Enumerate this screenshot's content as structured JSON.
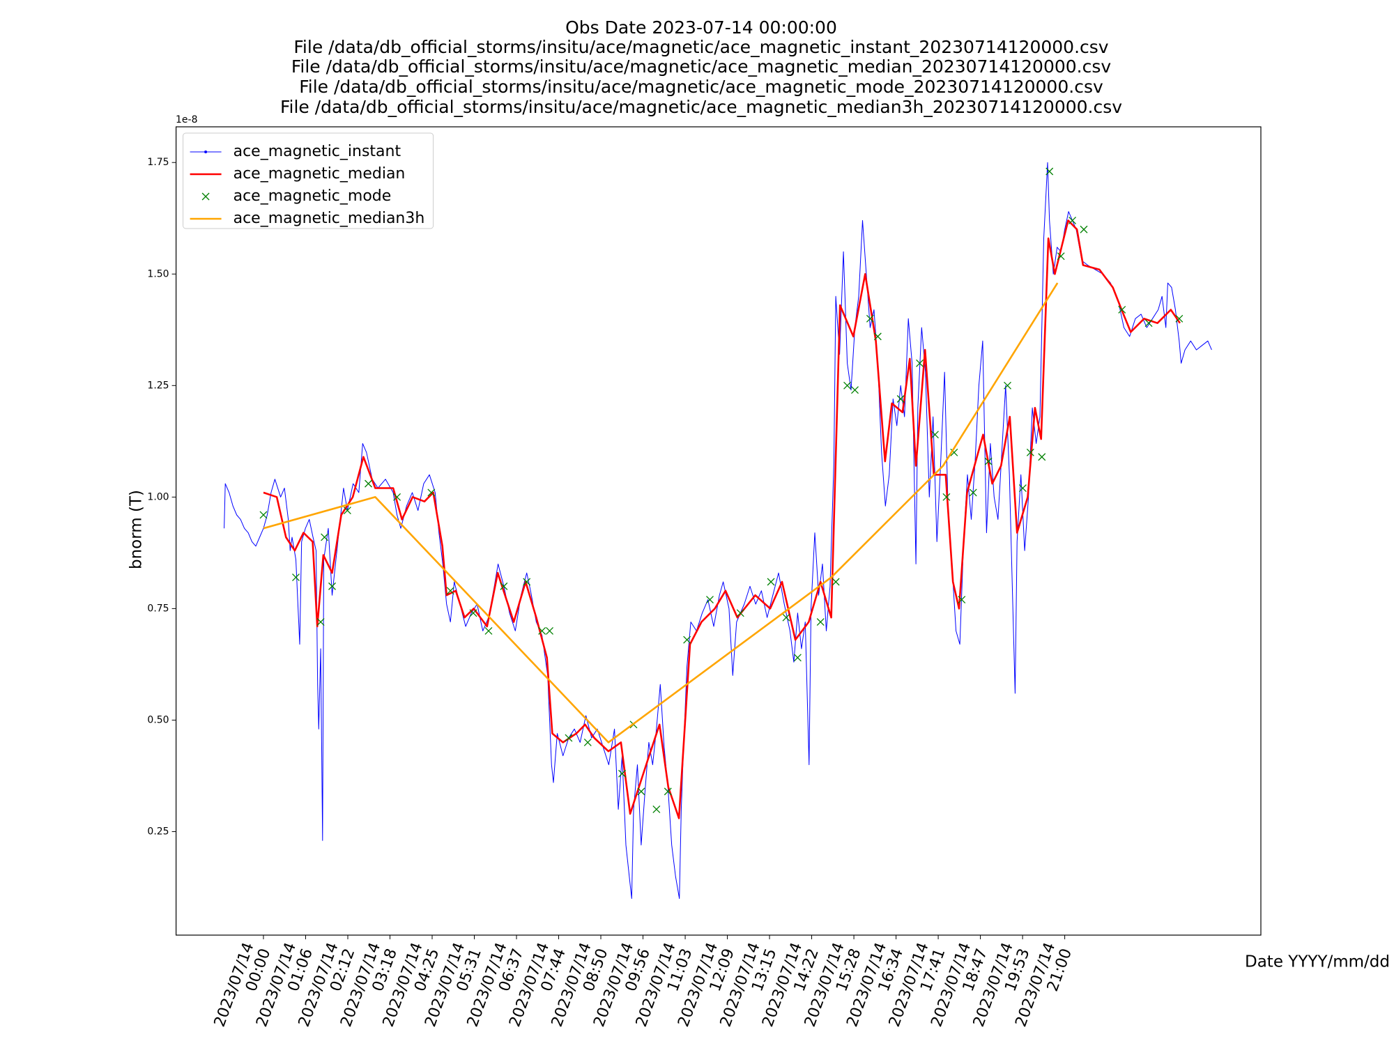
{
  "chart_data": {
    "type": "line",
    "title": "Obs Date 2023-07-14 00:00:00",
    "subtitles": [
      "File /data/db_official_storms/insitu/ace/magnetic/ace_magnetic_instant_20230714120000.csv",
      "File /data/db_official_storms/insitu/ace/magnetic/ace_magnetic_median_20230714120000.csv",
      "File /data/db_official_storms/insitu/ace/magnetic/ace_magnetic_mode_20230714120000.csv",
      "File /data/db_official_storms/insitu/ace/magnetic/ace_magnetic_median3h_20230714120000.csv"
    ],
    "y_label": "bnorm (T)",
    "x_label": "Date YYYY/mm/dd",
    "y_offset_label": "1e-8",
    "legend": "upper left",
    "grid": false,
    "xlim": [
      -2.29,
      26.14
    ],
    "ylim": [
      0.018,
      1.83
    ],
    "yticks": [
      0.25,
      {
        "value": 0.5,
        "label": "0.50"
      },
      0.75,
      {
        "value": 1.0,
        "label": "1.00"
      },
      1.25,
      {
        "value": 1.5,
        "label": "1.50"
      },
      1.75
    ],
    "xticks": [
      {
        "value": 0,
        "label": "2023/07/14\n00:00"
      },
      {
        "value": 1.105,
        "label": "2023/07/14\n01:06"
      },
      {
        "value": 2.211,
        "label": "2023/07/14\n02:12"
      },
      {
        "value": 3.316,
        "label": "2023/07/14\n03:18"
      },
      {
        "value": 4.421,
        "label": "2023/07/14\n04:25"
      },
      {
        "value": 5.526,
        "label": "2023/07/14\n05:31"
      },
      {
        "value": 6.632,
        "label": "2023/07/14\n06:37"
      },
      {
        "value": 7.737,
        "label": "2023/07/14\n07:44"
      },
      {
        "value": 8.842,
        "label": "2023/07/14\n08:50"
      },
      {
        "value": 9.947,
        "label": "2023/07/14\n09:56"
      },
      {
        "value": 11.053,
        "label": "2023/07/14\n11:03"
      },
      {
        "value": 12.158,
        "label": "2023/07/14\n12:09"
      },
      {
        "value": 13.263,
        "label": "2023/07/14\n13:15"
      },
      {
        "value": 14.368,
        "label": "2023/07/14\n14:22"
      },
      {
        "value": 15.474,
        "label": "2023/07/14\n15:28"
      },
      {
        "value": 16.579,
        "label": "2023/07/14\n16:34"
      },
      {
        "value": 17.684,
        "label": "2023/07/14\n17:41"
      },
      {
        "value": 18.789,
        "label": "2023/07/14\n18:47"
      },
      {
        "value": 19.895,
        "label": "2023/07/14\n19:53"
      },
      {
        "value": 21,
        "label": "2023/07/14\n21:00"
      }
    ],
    "series": [
      {
        "name": "ace_magnetic_instant",
        "color": "#0000ff",
        "style": "line-markers",
        "linewidth": 1,
        "x": [
          -1.03,
          -1.0,
          -0.9,
          -0.8,
          -0.7,
          -0.6,
          -0.5,
          -0.4,
          -0.3,
          -0.2,
          -0.1,
          0.0,
          0.1,
          0.2,
          0.3,
          0.45,
          0.55,
          0.65,
          0.7,
          0.75,
          0.85,
          0.95,
          1.0,
          1.1,
          1.2,
          1.3,
          1.38,
          1.42,
          1.45,
          1.5,
          1.55,
          1.58,
          1.7,
          1.8,
          1.9,
          2.0,
          2.1,
          2.2,
          2.35,
          2.5,
          2.6,
          2.7,
          2.85,
          3.0,
          3.2,
          3.4,
          3.5,
          3.6,
          3.75,
          3.9,
          4.05,
          4.2,
          4.35,
          4.5,
          4.6,
          4.7,
          4.8,
          4.9,
          5.0,
          5.15,
          5.3,
          5.45,
          5.6,
          5.75,
          5.9,
          6.05,
          6.15,
          6.3,
          6.45,
          6.6,
          6.75,
          6.9,
          7.0,
          7.15,
          7.3,
          7.45,
          7.55,
          7.6,
          7.7,
          7.85,
          8.0,
          8.15,
          8.3,
          8.45,
          8.6,
          8.75,
          8.9,
          9.05,
          9.2,
          9.3,
          9.4,
          9.5,
          9.6,
          9.65,
          9.7,
          9.8,
          9.9,
          10.0,
          10.1,
          10.2,
          10.3,
          10.4,
          10.5,
          10.6,
          10.7,
          10.8,
          10.9,
          10.95,
          11.0,
          11.1,
          11.2,
          11.35,
          11.5,
          11.65,
          11.8,
          11.95,
          12.05,
          12.2,
          12.3,
          12.4,
          12.6,
          12.75,
          12.9,
          13.05,
          13.2,
          13.35,
          13.5,
          13.65,
          13.8,
          13.9,
          14.0,
          14.1,
          14.2,
          14.3,
          14.35,
          14.45,
          14.55,
          14.65,
          14.75,
          14.85,
          14.95,
          15.0,
          15.1,
          15.2,
          15.3,
          15.4,
          15.5,
          15.6,
          15.7,
          15.8,
          15.9,
          16.0,
          16.1,
          16.2,
          16.3,
          16.4,
          16.5,
          16.6,
          16.7,
          16.8,
          16.9,
          17.0,
          17.1,
          17.15,
          17.25,
          17.35,
          17.45,
          17.55,
          17.65,
          17.75,
          17.85,
          17.95,
          18.05,
          18.15,
          18.25,
          18.35,
          18.45,
          18.55,
          18.65,
          18.75,
          18.85,
          18.95,
          19.05,
          19.15,
          19.25,
          19.35,
          19.45,
          19.55,
          19.65,
          19.7,
          19.75,
          19.85,
          19.95,
          20.05,
          20.15,
          20.25,
          20.35,
          20.45,
          20.55,
          20.6,
          20.7,
          20.8,
          20.9,
          21.0,
          21.1,
          21.2,
          21.3,
          21.45,
          21.6,
          21.8,
          22.0,
          22.2,
          22.4,
          22.55,
          22.7,
          22.85,
          23.0,
          23.15,
          23.3,
          23.45,
          23.55,
          23.65,
          23.7,
          23.8,
          23.9,
          24.0,
          24.05,
          24.15,
          24.3,
          24.45,
          24.6,
          24.75,
          24.85
        ],
        "values": [
          0.93,
          1.03,
          1.01,
          0.98,
          0.96,
          0.95,
          0.93,
          0.92,
          0.9,
          0.89,
          0.91,
          0.93,
          0.96,
          1.01,
          1.04,
          1.0,
          1.02,
          0.95,
          0.88,
          0.91,
          0.86,
          0.67,
          0.9,
          0.93,
          0.95,
          0.91,
          0.88,
          0.58,
          0.48,
          0.66,
          0.23,
          0.86,
          0.93,
          0.78,
          0.86,
          0.94,
          1.02,
          0.97,
          1.03,
          1.01,
          1.12,
          1.1,
          1.04,
          1.02,
          1.04,
          1.01,
          0.96,
          0.93,
          0.98,
          1.01,
          0.97,
          1.03,
          1.05,
          1.01,
          0.92,
          0.85,
          0.76,
          0.72,
          0.81,
          0.76,
          0.71,
          0.74,
          0.76,
          0.7,
          0.73,
          0.8,
          0.85,
          0.8,
          0.74,
          0.7,
          0.78,
          0.83,
          0.79,
          0.72,
          0.69,
          0.6,
          0.4,
          0.36,
          0.47,
          0.42,
          0.46,
          0.48,
          0.45,
          0.51,
          0.46,
          0.48,
          0.44,
          0.4,
          0.48,
          0.3,
          0.42,
          0.22,
          0.14,
          0.1,
          0.3,
          0.4,
          0.22,
          0.34,
          0.45,
          0.4,
          0.48,
          0.58,
          0.44,
          0.35,
          0.22,
          0.15,
          0.1,
          0.3,
          0.42,
          0.62,
          0.72,
          0.7,
          0.74,
          0.77,
          0.71,
          0.78,
          0.81,
          0.75,
          0.6,
          0.72,
          0.76,
          0.8,
          0.76,
          0.79,
          0.73,
          0.78,
          0.83,
          0.76,
          0.7,
          0.63,
          0.74,
          0.66,
          0.72,
          0.4,
          0.75,
          0.92,
          0.78,
          0.85,
          0.7,
          0.8,
          1.08,
          1.45,
          1.32,
          1.55,
          1.3,
          1.24,
          1.38,
          1.45,
          1.62,
          1.5,
          1.38,
          1.42,
          1.3,
          1.1,
          0.98,
          1.05,
          1.22,
          1.16,
          1.25,
          1.18,
          1.4,
          1.3,
          0.85,
          1.2,
          1.38,
          1.28,
          1.0,
          1.18,
          0.9,
          1.08,
          1.28,
          0.95,
          0.84,
          0.7,
          0.67,
          0.9,
          1.05,
          0.95,
          1.08,
          1.25,
          1.35,
          0.92,
          1.12,
          1.0,
          0.95,
          1.1,
          1.25,
          1.05,
          0.72,
          0.56,
          0.9,
          1.05,
          0.88,
          1.0,
          1.2,
          1.12,
          1.18,
          1.58,
          1.75,
          1.62,
          1.5,
          1.56,
          1.55,
          1.6,
          1.64,
          1.62,
          1.6,
          1.53,
          1.52,
          1.51,
          1.5,
          1.48,
          1.44,
          1.38,
          1.36,
          1.4,
          1.41,
          1.38,
          1.4,
          1.42,
          1.45,
          1.38,
          1.48,
          1.47,
          1.42,
          1.35,
          1.3,
          1.33,
          1.35,
          1.33,
          1.34,
          1.35,
          1.33
        ]
      },
      {
        "name": "ace_magnetic_median",
        "color": "#ff0000",
        "style": "line",
        "linewidth": 2.6,
        "x": [
          0,
          0.35,
          0.59,
          0.82,
          1.05,
          1.29,
          1.41,
          1.57,
          1.8,
          2.04,
          2.34,
          2.62,
          2.93,
          3.4,
          3.63,
          3.91,
          4.22,
          4.45,
          4.69,
          4.8,
          5.04,
          5.27,
          5.51,
          5.86,
          6.14,
          6.56,
          6.87,
          7.15,
          7.43,
          7.57,
          7.85,
          8.2,
          8.43,
          8.67,
          9.04,
          9.37,
          9.61,
          9.84,
          10.07,
          10.38,
          10.61,
          10.89,
          11.18,
          11.48,
          11.83,
          12.11,
          12.42,
          12.89,
          13.28,
          13.59,
          13.94,
          14.29,
          14.6,
          14.88,
          15.11,
          15.46,
          15.77,
          16.05,
          16.29,
          16.47,
          16.75,
          16.94,
          17.1,
          17.34,
          17.57,
          17.88,
          18.07,
          18.23,
          18.44,
          18.86,
          19.1,
          19.33,
          19.56,
          19.75,
          20.03,
          20.22,
          20.38,
          20.57,
          20.74,
          21.09,
          21.32,
          21.48,
          21.91,
          22.26,
          22.49,
          22.73,
          23.08,
          23.43,
          23.78,
          24.02
        ],
        "values": [
          1.01,
          1.0,
          0.91,
          0.88,
          0.92,
          0.9,
          0.71,
          0.87,
          0.83,
          0.96,
          1.0,
          1.09,
          1.02,
          1.02,
          0.95,
          1.0,
          0.99,
          1.01,
          0.89,
          0.78,
          0.79,
          0.73,
          0.75,
          0.71,
          0.83,
          0.72,
          0.81,
          0.73,
          0.64,
          0.47,
          0.45,
          0.47,
          0.49,
          0.46,
          0.43,
          0.45,
          0.29,
          0.35,
          0.41,
          0.49,
          0.35,
          0.28,
          0.67,
          0.72,
          0.75,
          0.79,
          0.73,
          0.78,
          0.75,
          0.81,
          0.68,
          0.72,
          0.81,
          0.73,
          1.43,
          1.36,
          1.5,
          1.35,
          1.08,
          1.21,
          1.19,
          1.31,
          1.07,
          1.33,
          1.05,
          1.05,
          0.81,
          0.75,
          1.01,
          1.14,
          1.03,
          1.07,
          1.18,
          0.92,
          1.0,
          1.2,
          1.13,
          1.58,
          1.5,
          1.62,
          1.6,
          1.52,
          1.51,
          1.47,
          1.42,
          1.37,
          1.4,
          1.39,
          1.42,
          1.39
        ]
      },
      {
        "name": "ace_magnetic_mode",
        "color": "#008000",
        "style": "markers",
        "linewidth": 1.3,
        "x": [
          0,
          0.85,
          1.5,
          1.6,
          1.8,
          2.2,
          2.75,
          3.5,
          4.4,
          4.9,
          5.5,
          5.9,
          6.3,
          6.9,
          7.3,
          7.5,
          8.0,
          8.5,
          9.4,
          9.7,
          9.9,
          10.3,
          10.6,
          11.1,
          11.7,
          12.5,
          13.3,
          13.7,
          14.0,
          14.6,
          15.0,
          15.3,
          15.5,
          15.9,
          16.1,
          16.7,
          17.2,
          17.6,
          17.9,
          18.1,
          18.3,
          18.6,
          19.0,
          19.5,
          19.9,
          20.1,
          20.4,
          20.6,
          20.9,
          21.2,
          21.5,
          22.5,
          23.2,
          24.0
        ],
        "values": [
          0.96,
          0.82,
          0.72,
          0.91,
          0.8,
          0.97,
          1.03,
          1.0,
          1.01,
          0.79,
          0.74,
          0.7,
          0.8,
          0.81,
          0.7,
          0.7,
          0.46,
          0.45,
          0.38,
          0.49,
          0.34,
          0.3,
          0.34,
          0.68,
          0.77,
          0.74,
          0.81,
          0.73,
          0.64,
          0.72,
          0.81,
          1.25,
          1.24,
          1.4,
          1.36,
          1.22,
          1.3,
          1.14,
          1.0,
          1.1,
          0.77,
          1.01,
          1.08,
          1.25,
          1.02,
          1.1,
          1.09,
          1.73,
          1.54,
          1.62,
          1.6,
          1.42,
          1.39,
          1.4
        ]
      },
      {
        "name": "ace_magnetic_median3h",
        "color": "#ffa500",
        "style": "line",
        "linewidth": 2.6,
        "x": [
          0,
          2.93,
          9.04,
          14.88,
          17.81,
          20.81
        ],
        "values": [
          0.93,
          1.0,
          0.45,
          0.82,
          1.07,
          1.48
        ]
      }
    ]
  }
}
